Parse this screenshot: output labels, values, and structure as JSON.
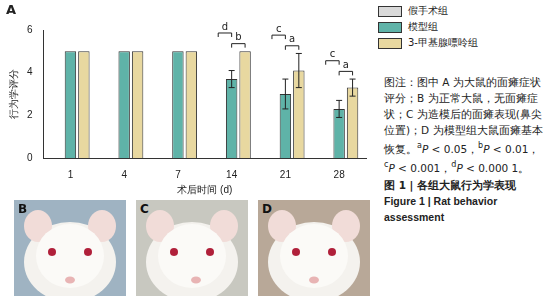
{
  "chart_data": {
    "type": "bar",
    "xlabel": "术后时间 (d)",
    "ylabel": "行为学评分",
    "categories": [
      "1",
      "4",
      "7",
      "14",
      "21",
      "28"
    ],
    "series": [
      {
        "name": "假手术组",
        "color": "#d9d9d9",
        "values": [
          0,
          0,
          0,
          0,
          0,
          0
        ],
        "errors": [
          0,
          0,
          0,
          0,
          0,
          0
        ]
      },
      {
        "name": "模型组",
        "color": "#5fb3a8",
        "values": [
          5,
          5,
          5,
          3.7,
          3.0,
          2.3
        ],
        "errors": [
          0,
          0,
          0,
          0.4,
          0.7,
          0.4
        ]
      },
      {
        "name": "3-甲基腺嘌呤组",
        "color": "#e8d8a0",
        "values": [
          5,
          5,
          5,
          5,
          4.1,
          3.3
        ],
        "errors": [
          0,
          0,
          0,
          0,
          0.8,
          0.4
        ]
      }
    ],
    "annotations": [
      {
        "category": "14",
        "from": "模型组",
        "to": "3-甲基腺嘌呤组",
        "text": "b"
      },
      {
        "category": "14",
        "from": "假手术组",
        "to": "模型组",
        "text": "d"
      },
      {
        "category": "21",
        "from": "模型组",
        "to": "3-甲基腺嘌呤组",
        "text": "a"
      },
      {
        "category": "21",
        "from": "假手术组",
        "to": "模型组",
        "text": "c"
      },
      {
        "category": "28",
        "from": "模型组",
        "to": "3-甲基腺嘌呤组",
        "text": "a"
      },
      {
        "category": "28",
        "from": "假手术组",
        "to": "模型组",
        "text": "c"
      }
    ],
    "ylim": [
      0,
      6
    ],
    "yticks": [
      0,
      2,
      4,
      6
    ],
    "grid": false,
    "legend": "right"
  },
  "panel_labels": [
    "A",
    "B",
    "C",
    "D"
  ],
  "caption": {
    "note": "图注：图中 A 为大鼠的面瘫症状评分；B 为正常大鼠，无面瘫症状；C 为造模后的面瘫表现(鼻尖位置)；D 为模型组大鼠面瘫基本恢复。",
    "significance": [
      {
        "mark": "a",
        "text": "P < 0.05，"
      },
      {
        "mark": "b",
        "text": "P < 0.01，"
      },
      {
        "mark": "c",
        "text": "P < 0.001，"
      },
      {
        "mark": "d",
        "text": "P < 0.000 1。"
      }
    ],
    "title": "图 1 | 各组大鼠行为学表现",
    "title_en": "Figure 1 | Rat behavior assessment"
  }
}
